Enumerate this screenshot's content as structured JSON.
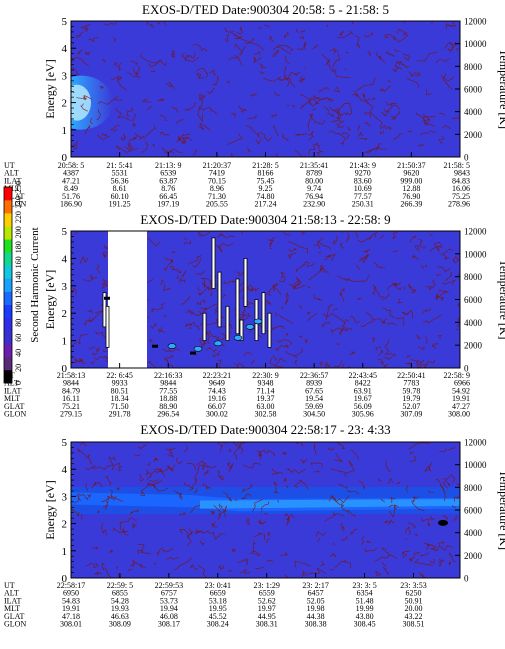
{
  "colors": {
    "background": "#3a3ad8",
    "contour": "#7a1418",
    "band_light": "#1a66ff",
    "band_mid": "#1d4fe6",
    "band_cyan": "#2fa6ff",
    "gap": "#ffffff"
  },
  "colorbar": {
    "label": "Second Harmonic Current",
    "ticks": [
      "0",
      "20",
      "40",
      "60",
      "80",
      "100",
      "120",
      "140",
      "160",
      "180",
      "200",
      "220",
      "240",
      "250"
    ],
    "colors": [
      "#000000",
      "#5a2a7a",
      "#6a1fb0",
      "#3a2fd0",
      "#2f2fe8",
      "#1a3cff",
      "#1a6aff",
      "#1aa0ff",
      "#12c8e0",
      "#12d890",
      "#20e020",
      "#b8e800",
      "#ffd000",
      "#ff7000",
      "#ff0000"
    ]
  },
  "row_labels": [
    "UT",
    "ALT",
    "ILAT",
    "MLT",
    "GLAT",
    "GLON"
  ],
  "chart_data": [
    {
      "type": "heatmap",
      "title": "EXOS-D/TED   Date:900304  20:58: 5 - 21:58: 5",
      "ylabel": "Energy [eV]",
      "y2label": "Temperature [K]",
      "ylim": [
        0,
        5
      ],
      "y_ticks": [
        "0",
        "1",
        "2",
        "3",
        "4",
        "5"
      ],
      "y2lim": [
        0,
        12000
      ],
      "y2_ticks": [
        "0",
        "2000",
        "4000",
        "6000",
        "8000",
        "10000",
        "12000"
      ],
      "columns": [
        [
          "20:58: 5",
          "4387",
          "47.21",
          "8.49",
          "51.76",
          "186.90"
        ],
        [
          "21: 5:41",
          "5531",
          "56.36",
          "8.61",
          "60.10",
          "191.25"
        ],
        [
          "21:13: 9",
          "6539",
          "63.87",
          "8.76",
          "66.45",
          "197.19"
        ],
        [
          "21:20:37",
          "7419",
          "70.15",
          "8.96",
          "71.30",
          "205.55"
        ],
        [
          "21:28: 5",
          "8166",
          "75.45",
          "9.25",
          "74.80",
          "217.24"
        ],
        [
          "21:35:41",
          "8789",
          "80.00",
          "9.74",
          "76.94",
          "232.90"
        ],
        [
          "21:43: 9",
          "9270",
          "83.60",
          "10.69",
          "77.57",
          "250.31"
        ],
        [
          "21:50:37",
          "9620",
          "999.00",
          "12.88",
          "76.90",
          "266.39"
        ],
        [
          "21:58: 5",
          "9843",
          "84.83",
          "16.06",
          "75.25",
          "278.96"
        ]
      ]
    },
    {
      "type": "heatmap",
      "title": "EXOS-D/TED   Date:900304  21:58:13 - 22:58: 9",
      "ylabel": "Energy [eV]",
      "y2label": "Temperature [K]",
      "ylim": [
        0,
        5
      ],
      "y_ticks": [
        "0",
        "1",
        "2",
        "3",
        "4",
        "5"
      ],
      "y2lim": [
        0,
        12000
      ],
      "y2_ticks": [
        "0",
        "2000",
        "4000",
        "6000",
        "8000",
        "10000",
        "12000"
      ],
      "columns": [
        [
          "21:58:13",
          "9844",
          "84.79",
          "16.11",
          "75.21",
          "279.15"
        ],
        [
          "22: 6:45",
          "9933",
          "80.51",
          "18.34",
          "71.50",
          "291.78"
        ],
        [
          "22:16:33",
          "9844",
          "77.55",
          "18.88",
          "88.90",
          "296.54"
        ],
        [
          "22:23:21",
          "9649",
          "74.43",
          "19.16",
          "66.07",
          "300.02"
        ],
        [
          "22:30: 9",
          "9348",
          "71.14",
          "19.37",
          "63.00",
          "302.58"
        ],
        [
          "22:36:57",
          "8939",
          "67.65",
          "19.54",
          "59.69",
          "304.50"
        ],
        [
          "22:43:45",
          "8422",
          "63.91",
          "19.67",
          "56.09",
          "305.96"
        ],
        [
          "22:50:41",
          "7783",
          "59.78",
          "19.79",
          "52.07",
          "307.09"
        ],
        [
          "22:58: 9",
          "6966",
          "54.92",
          "19.91",
          "47.27",
          "308.00"
        ]
      ]
    },
    {
      "type": "heatmap",
      "title": "EXOS-D/TED   Date:900304  22:58:17 - 23: 4:33",
      "ylabel": "Energy [eV]",
      "y2label": "Temperature [K]",
      "ylim": [
        0,
        5
      ],
      "y_ticks": [
        "0",
        "1",
        "2",
        "3",
        "4",
        "5"
      ],
      "y2lim": [
        0,
        12000
      ],
      "y2_ticks": [
        "0",
        "2000",
        "4000",
        "6000",
        "8000",
        "10000",
        "12000"
      ],
      "columns": [
        [
          "22:58:17",
          "6950",
          "54.83",
          "19.91",
          "47.18",
          "308.01"
        ],
        [
          "22:59: 5",
          "6855",
          "54.28",
          "19.93",
          "46.63",
          "308.09"
        ],
        [
          "22:59:53",
          "6757",
          "53.73",
          "19.94",
          "46.08",
          "308.17"
        ],
        [
          "23: 0:41",
          "6659",
          "53.18",
          "19.95",
          "45.52",
          "308.24"
        ],
        [
          "23: 1:29",
          "6559",
          "52.62",
          "19.97",
          "44.95",
          "308.31"
        ],
        [
          "23: 2:17",
          "6457",
          "52.05",
          "19.98",
          "44.38",
          "308.38"
        ],
        [
          "23: 3: 5",
          "6354",
          "51.48",
          "19.99",
          "43.80",
          "308.45"
        ],
        [
          "23: 3:53",
          "6250",
          "50.91",
          "20.00",
          "43.22",
          "308.51"
        ]
      ]
    }
  ]
}
